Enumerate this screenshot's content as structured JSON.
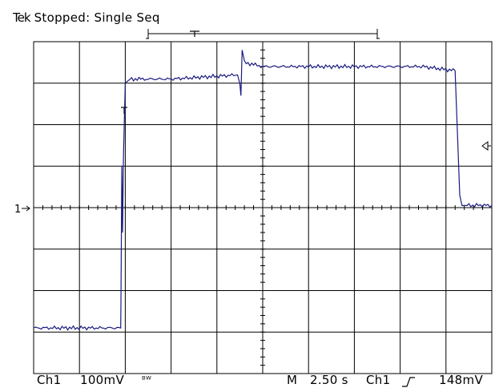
{
  "status": {
    "brand": "Tek",
    "state": "Stopped:",
    "acquisition": "Single Seq"
  },
  "channel_marker": "1",
  "readout": {
    "channel": "Ch1",
    "scale": "100mV",
    "bw_symbol": "ᴮᵂ",
    "mode": "M",
    "timebase": "2.50 s",
    "trigger_source": "Ch1",
    "trigger_slope_icon": "rising-edge",
    "trigger_level": "148mV"
  },
  "colors": {
    "trace": "#1a1a80",
    "grid": "#000000",
    "background": "#ffffff"
  },
  "chart_data": {
    "type": "line",
    "grid": {
      "x_divisions": 10,
      "y_divisions": 8
    },
    "series": [
      {
        "x_div": [
          0,
          3.8,
          3.81,
          3.85,
          3.88,
          3.92,
          4.0,
          4.2,
          5.0,
          6.0,
          7.5,
          8.9,
          9.0,
          9.05,
          9.1,
          9.2,
          10.0,
          14.0,
          17.0,
          18.4,
          18.6,
          18.7,
          19.0,
          19.5,
          20.0
        ],
        "y_div": [
          -2.9,
          -2.9,
          -2.3,
          1.0,
          -0.6,
          1.2,
          3.0,
          3.1,
          3.1,
          3.1,
          3.15,
          3.2,
          3.0,
          2.7,
          3.8,
          3.5,
          3.4,
          3.4,
          3.4,
          3.3,
          0.3,
          0.05,
          0.05,
          0.06,
          0.05
        ]
      }
    ]
  }
}
